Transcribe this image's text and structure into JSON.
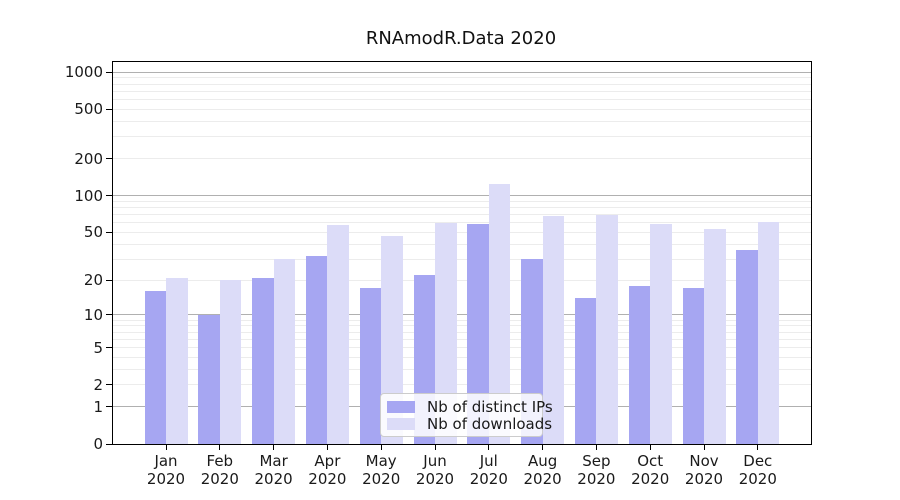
{
  "title": "RNAmodR.Data 2020",
  "chart_data": {
    "type": "bar",
    "title": "RNAmodR.Data 2020",
    "categories": [
      "Jan",
      "Feb",
      "Mar",
      "Apr",
      "May",
      "Jun",
      "Jul",
      "Aug",
      "Sep",
      "Oct",
      "Nov",
      "Dec"
    ],
    "category_year": "2020",
    "series": [
      {
        "name": "Nb of distinct IPs",
        "color": "#a6a6f2",
        "values": [
          16,
          10,
          21,
          32,
          17,
          22,
          59,
          30,
          14,
          18,
          17,
          36
        ]
      },
      {
        "name": "Nb of downloads",
        "color": "#dcdcf8",
        "values": [
          21,
          20,
          30,
          57,
          47,
          60,
          124,
          68,
          70,
          59,
          53,
          61
        ]
      }
    ],
    "y_scale": "log1p",
    "y_ticks": [
      0,
      1,
      2,
      5,
      10,
      20,
      50,
      100,
      200,
      500,
      1000
    ],
    "ylim": [
      0,
      1206
    ],
    "grid": "horizontal major (powers of 10) + minor log lines",
    "legend_position": "inside-bottom-center"
  },
  "colors": {
    "bar_ips": "#a6a6f2",
    "bar_downloads": "#dcdcf8",
    "major_grid": "#b0b0b0",
    "minor_grid": "#ececec",
    "axis": "#000000",
    "text": "#1a1a1a",
    "legend_border": "#cccccc"
  }
}
